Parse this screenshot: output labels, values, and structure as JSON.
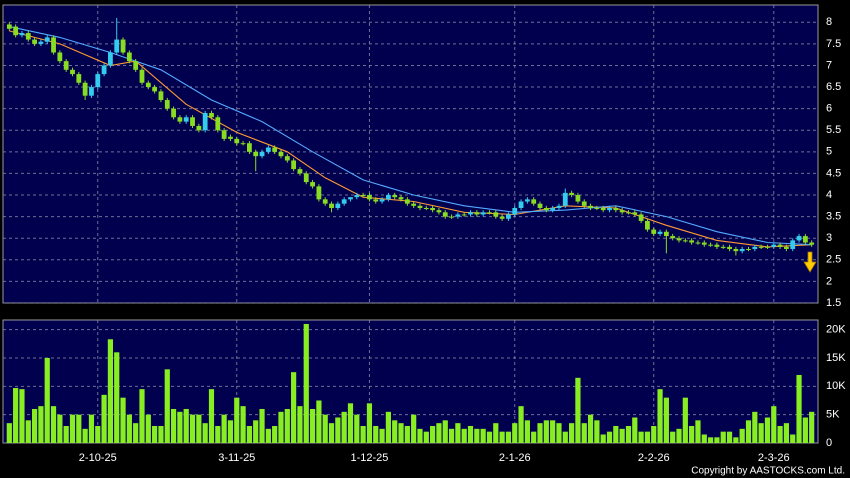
{
  "chart_data": {
    "type": "candlestick",
    "copyright": "Copyright by AASTOCKS.com Ltd.",
    "up_color": "#33ccee",
    "down_color": "#88dd22",
    "xlim": [
      -1,
      128
    ],
    "xticks": [
      {
        "value": 14,
        "label": "2-10-25"
      },
      {
        "value": 36,
        "label": "3-11-25"
      },
      {
        "value": 57,
        "label": "1-12-25"
      },
      {
        "value": 80,
        "label": "2-1-26"
      },
      {
        "value": 102,
        "label": "2-2-26"
      },
      {
        "value": 121,
        "label": "2-3-26"
      }
    ],
    "ylim": [
      1.5,
      8.4
    ],
    "yticks": [
      1.5,
      2,
      2.5,
      3,
      3.5,
      4,
      4.5,
      5,
      5.5,
      6,
      6.5,
      7,
      7.5,
      8
    ],
    "grid": true,
    "open": [
      7.95,
      7.9,
      7.7,
      7.75,
      7.6,
      7.5,
      7.55,
      7.65,
      7.3,
      7.1,
      6.9,
      6.8,
      6.6,
      6.3,
      6.5,
      6.8,
      7.0,
      7.3,
      7.6,
      7.3,
      7.1,
      6.9,
      6.6,
      6.5,
      6.4,
      6.2,
      6.0,
      5.8,
      5.7,
      5.8,
      5.6,
      5.5,
      5.9,
      5.8,
      5.5,
      5.35,
      5.3,
      5.2,
      5.2,
      5.0,
      4.9,
      5.0,
      5.1,
      5.0,
      4.9,
      4.8,
      4.6,
      4.5,
      4.3,
      4.2,
      3.9,
      3.8,
      3.7,
      3.8,
      3.9,
      3.95,
      4.0,
      4.0,
      3.9,
      3.85,
      3.9,
      4.0,
      3.95,
      3.9,
      3.8,
      3.75,
      3.7,
      3.7,
      3.65,
      3.6,
      3.5,
      3.5,
      3.55,
      3.55,
      3.6,
      3.55,
      3.6,
      3.6,
      3.5,
      3.45,
      3.55,
      3.7,
      3.85,
      3.9,
      3.8,
      3.7,
      3.65,
      3.7,
      3.75,
      4.05,
      4.0,
      3.85,
      3.75,
      3.7,
      3.7,
      3.65,
      3.7,
      3.65,
      3.6,
      3.6,
      3.55,
      3.4,
      3.2,
      3.1,
      3.15,
      3.05,
      3.0,
      2.95,
      2.95,
      2.9,
      2.9,
      2.85,
      2.85,
      2.8,
      2.8,
      2.75,
      2.7,
      2.75,
      2.75,
      2.8,
      2.8,
      2.8,
      2.85,
      2.8,
      2.75,
      2.95,
      3.05,
      2.9
    ],
    "high": [
      8.0,
      7.95,
      7.8,
      7.8,
      7.65,
      7.6,
      7.7,
      7.7,
      7.35,
      7.15,
      6.95,
      6.85,
      6.65,
      6.55,
      6.85,
      7.05,
      7.35,
      8.1,
      7.65,
      7.35,
      7.15,
      6.95,
      6.65,
      6.55,
      6.45,
      6.25,
      6.05,
      5.85,
      5.85,
      5.85,
      5.65,
      5.95,
      5.95,
      5.85,
      5.55,
      5.4,
      5.35,
      5.25,
      5.25,
      5.05,
      5.05,
      5.15,
      5.15,
      5.05,
      4.95,
      4.85,
      4.65,
      4.55,
      4.35,
      4.25,
      3.95,
      3.85,
      3.85,
      3.95,
      3.95,
      4.05,
      4.05,
      4.05,
      3.95,
      3.95,
      4.05,
      4.05,
      4.0,
      3.95,
      3.85,
      3.8,
      3.75,
      3.75,
      3.7,
      3.65,
      3.55,
      3.6,
      3.6,
      3.65,
      3.65,
      3.65,
      3.65,
      3.65,
      3.55,
      3.6,
      3.75,
      3.9,
      3.95,
      3.95,
      3.85,
      3.75,
      3.75,
      3.8,
      4.15,
      4.1,
      4.05,
      3.9,
      3.8,
      3.75,
      3.75,
      3.75,
      3.75,
      3.7,
      3.65,
      3.65,
      3.6,
      3.45,
      3.25,
      3.2,
      3.2,
      3.1,
      3.05,
      3.0,
      3.0,
      2.95,
      2.95,
      2.9,
      2.9,
      2.85,
      2.85,
      2.8,
      2.8,
      2.8,
      2.85,
      2.85,
      2.85,
      2.9,
      2.9,
      2.85,
      3.0,
      3.1,
      3.1,
      2.95
    ],
    "low": [
      7.8,
      7.65,
      7.65,
      7.55,
      7.45,
      7.45,
      7.5,
      7.25,
      7.05,
      6.85,
      6.75,
      6.55,
      6.2,
      6.25,
      6.45,
      6.75,
      6.95,
      7.25,
      7.25,
      7.05,
      6.85,
      6.55,
      6.45,
      6.35,
      6.15,
      5.95,
      5.75,
      5.65,
      5.65,
      5.55,
      5.45,
      5.45,
      5.75,
      5.45,
      5.25,
      5.25,
      5.15,
      5.15,
      4.95,
      4.55,
      4.85,
      4.95,
      4.95,
      4.85,
      4.75,
      4.55,
      4.45,
      4.25,
      4.15,
      3.85,
      3.75,
      3.6,
      3.65,
      3.75,
      3.85,
      3.9,
      3.95,
      3.85,
      3.8,
      3.8,
      3.85,
      3.9,
      3.85,
      3.75,
      3.7,
      3.65,
      3.65,
      3.6,
      3.55,
      3.45,
      3.45,
      3.45,
      3.5,
      3.5,
      3.5,
      3.5,
      3.55,
      3.45,
      3.4,
      3.4,
      3.5,
      3.65,
      3.8,
      3.75,
      3.65,
      3.6,
      3.6,
      3.65,
      3.7,
      3.95,
      3.8,
      3.7,
      3.65,
      3.65,
      3.6,
      3.6,
      3.6,
      3.55,
      3.55,
      3.5,
      3.35,
      3.15,
      3.05,
      3.05,
      2.65,
      2.95,
      2.9,
      2.9,
      2.85,
      2.85,
      2.8,
      2.8,
      2.75,
      2.75,
      2.7,
      2.6,
      2.65,
      2.7,
      2.7,
      2.75,
      2.75,
      2.75,
      2.75,
      2.7,
      2.7,
      2.9,
      2.85,
      2.8
    ],
    "close": [
      7.85,
      7.7,
      7.75,
      7.6,
      7.5,
      7.55,
      7.65,
      7.3,
      7.1,
      6.9,
      6.8,
      6.6,
      6.3,
      6.5,
      6.8,
      7.0,
      7.3,
      7.6,
      7.3,
      7.1,
      6.9,
      6.6,
      6.5,
      6.4,
      6.2,
      6.0,
      5.8,
      5.7,
      5.8,
      5.6,
      5.5,
      5.9,
      5.8,
      5.5,
      5.3,
      5.3,
      5.2,
      5.2,
      5.0,
      4.9,
      5.0,
      5.1,
      5.0,
      4.9,
      4.8,
      4.6,
      4.5,
      4.3,
      4.2,
      3.9,
      3.8,
      3.7,
      3.8,
      3.9,
      3.95,
      4.0,
      4.0,
      3.9,
      3.85,
      3.9,
      4.0,
      3.95,
      3.9,
      3.8,
      3.75,
      3.7,
      3.7,
      3.65,
      3.6,
      3.5,
      3.5,
      3.55,
      3.55,
      3.6,
      3.55,
      3.6,
      3.6,
      3.5,
      3.45,
      3.55,
      3.7,
      3.85,
      3.9,
      3.8,
      3.7,
      3.65,
      3.7,
      3.75,
      4.05,
      4.0,
      3.85,
      3.75,
      3.7,
      3.7,
      3.65,
      3.7,
      3.65,
      3.6,
      3.6,
      3.55,
      3.4,
      3.2,
      3.1,
      3.15,
      3.05,
      3.0,
      2.95,
      2.95,
      2.9,
      2.9,
      2.85,
      2.85,
      2.8,
      2.8,
      2.75,
      2.7,
      2.75,
      2.75,
      2.8,
      2.8,
      2.8,
      2.85,
      2.8,
      2.75,
      2.95,
      3.05,
      2.9,
      2.85
    ],
    "moving_averages": [
      {
        "color": "#ff9933",
        "x": [
          0,
          8,
          16,
          20,
          28,
          36,
          44,
          50,
          56,
          64,
          72,
          80,
          88,
          96,
          104,
          112,
          120,
          127
        ],
        "values": [
          7.8,
          7.5,
          7.0,
          7.1,
          6.1,
          5.45,
          5.0,
          4.4,
          3.95,
          3.85,
          3.6,
          3.55,
          3.75,
          3.7,
          3.3,
          2.95,
          2.8,
          2.85
        ]
      },
      {
        "color": "#55aaff",
        "x": [
          0,
          8,
          16,
          24,
          32,
          40,
          48,
          56,
          64,
          72,
          80,
          88,
          96,
          104,
          112,
          120,
          127
        ],
        "values": [
          7.9,
          7.65,
          7.3,
          6.9,
          6.2,
          5.7,
          5.0,
          4.35,
          4.0,
          3.75,
          3.6,
          3.65,
          3.75,
          3.5,
          3.15,
          2.9,
          2.85
        ]
      }
    ],
    "volume": {
      "color": "#88ee22",
      "ylim": [
        0,
        21700
      ],
      "yticks": [
        0,
        {
          "value": 5000,
          "label": "5K"
        },
        {
          "value": 10000,
          "label": "10K"
        },
        {
          "value": 15000,
          "label": "15K"
        },
        {
          "value": 20000,
          "label": "20K"
        }
      ],
      "values": [
        3500,
        9700,
        9500,
        4000,
        6000,
        6500,
        15000,
        6500,
        5000,
        3000,
        5000,
        5000,
        2500,
        5000,
        3000,
        8500,
        18300,
        16000,
        8000,
        5000,
        3500,
        9500,
        5000,
        3000,
        3000,
        13000,
        6000,
        5500,
        6000,
        5000,
        5000,
        3500,
        9500,
        3000,
        5000,
        4000,
        8000,
        6500,
        3000,
        4000,
        6000,
        2500,
        3000,
        5500,
        6000,
        12500,
        6500,
        21000,
        6000,
        7500,
        5000,
        3500,
        4500,
        5500,
        7000,
        5000,
        3000,
        7000,
        3000,
        2500,
        5500,
        4000,
        3500,
        3000,
        5000,
        2500,
        2000,
        3000,
        3500,
        4000,
        2500,
        3500,
        2500,
        3000,
        2500,
        2500,
        2000,
        3500,
        2000,
        2000,
        3500,
        6500,
        4000,
        2000,
        3500,
        4000,
        4000,
        3500,
        2000,
        3500,
        11500,
        3500,
        5000,
        4000,
        1500,
        2000,
        3000,
        2500,
        3000,
        4500,
        2000,
        2000,
        3000,
        9500,
        8000,
        2000,
        2500,
        8000,
        3000,
        4000,
        1500,
        1000,
        1000,
        2000,
        2000,
        1000,
        2500,
        4000,
        5500,
        3500,
        4500,
        6500,
        3000,
        3500,
        1500,
        12000,
        4500,
        5500
      ]
    }
  }
}
